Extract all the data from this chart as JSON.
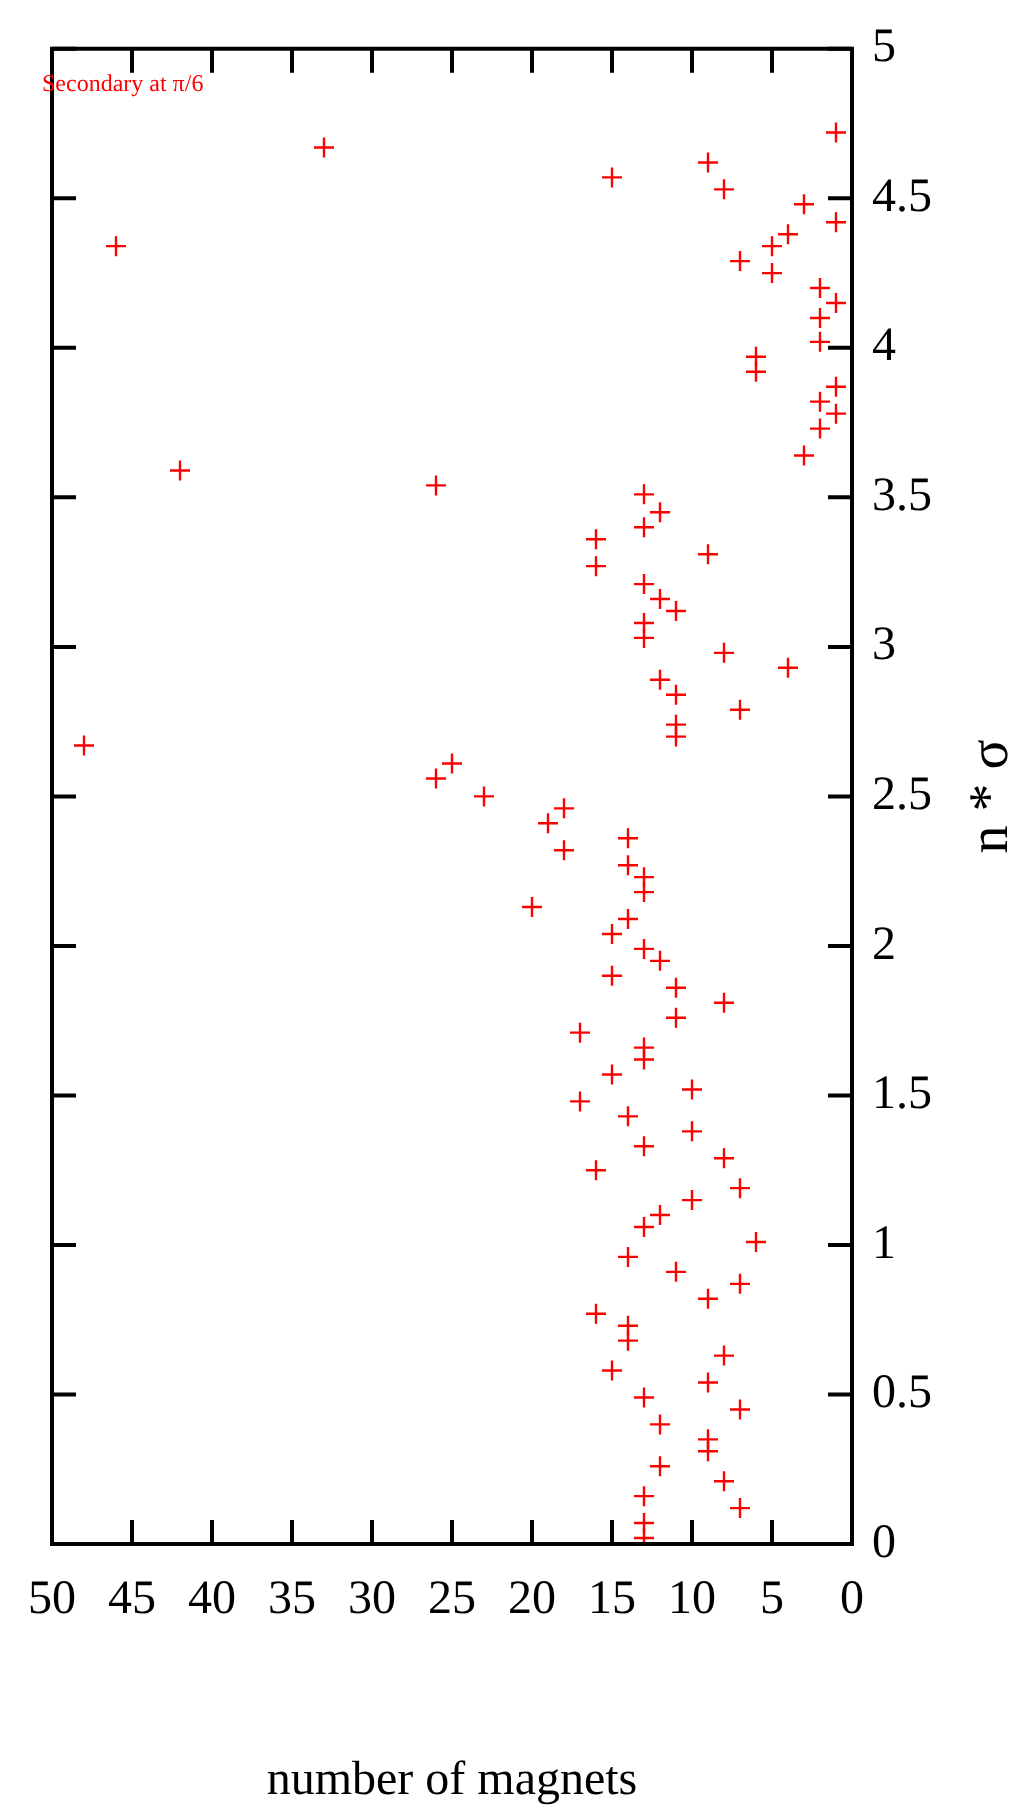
{
  "chart_data": {
    "type": "scatter",
    "xlabel": "number of magnets",
    "ylabel": "n * σ",
    "xlim": [
      50,
      0
    ],
    "ylim": [
      0,
      5
    ],
    "xticks": [
      50,
      45,
      40,
      35,
      30,
      25,
      20,
      15,
      10,
      5,
      0
    ],
    "yticks": [
      0,
      0.5,
      1,
      1.5,
      2,
      2.5,
      3,
      3.5,
      4,
      4.5,
      5
    ],
    "grid": false,
    "legend": "top left",
    "marker": "cross",
    "series": [
      {
        "name": "Secondary at π/6",
        "color": "#ff0000",
        "x": [
          1,
          33,
          15,
          9,
          8,
          3,
          1,
          46,
          4,
          5,
          7,
          5,
          2,
          1,
          2,
          2,
          6,
          6,
          1,
          2,
          1,
          2,
          3,
          42,
          26,
          13,
          12,
          13,
          16,
          16,
          9,
          13,
          12,
          11,
          13,
          13,
          8,
          4,
          12,
          11,
          7,
          11,
          11,
          48,
          25,
          26,
          23,
          18,
          19,
          18,
          14,
          14,
          13,
          13,
          20,
          14,
          15,
          13,
          12,
          15,
          11,
          8,
          11,
          17,
          13,
          13,
          15,
          10,
          17,
          14,
          10,
          13,
          8,
          16,
          7,
          10,
          12,
          13,
          6,
          14,
          11,
          7,
          9,
          16,
          14,
          14,
          8,
          15,
          9,
          13,
          7,
          12,
          9,
          9,
          12,
          8,
          13,
          7,
          13,
          13
        ],
        "values": [
          4.72,
          4.67,
          4.57,
          4.62,
          4.53,
          4.48,
          4.42,
          4.34,
          4.38,
          4.34,
          4.29,
          4.25,
          4.2,
          4.15,
          4.1,
          4.02,
          3.97,
          3.92,
          3.87,
          3.82,
          3.78,
          3.73,
          3.64,
          3.59,
          3.54,
          3.51,
          3.45,
          3.4,
          3.36,
          3.27,
          3.31,
          3.21,
          3.16,
          3.12,
          3.08,
          3.03,
          2.98,
          2.93,
          2.89,
          2.84,
          2.79,
          2.74,
          2.7,
          2.67,
          2.61,
          2.56,
          2.5,
          2.46,
          2.41,
          2.32,
          2.36,
          2.27,
          2.23,
          2.18,
          2.13,
          2.09,
          2.04,
          1.99,
          1.95,
          1.9,
          1.86,
          1.81,
          1.76,
          1.71,
          1.66,
          1.62,
          1.57,
          1.52,
          1.48,
          1.43,
          1.38,
          1.33,
          1.29,
          1.25,
          1.19,
          1.15,
          1.1,
          1.06,
          1.01,
          0.96,
          0.91,
          0.87,
          0.82,
          0.77,
          0.73,
          0.68,
          0.63,
          0.58,
          0.54,
          0.49,
          0.45,
          0.4,
          0.35,
          0.31,
          0.26,
          0.21,
          0.16,
          0.12,
          0.07,
          0.02
        ]
      }
    ]
  }
}
